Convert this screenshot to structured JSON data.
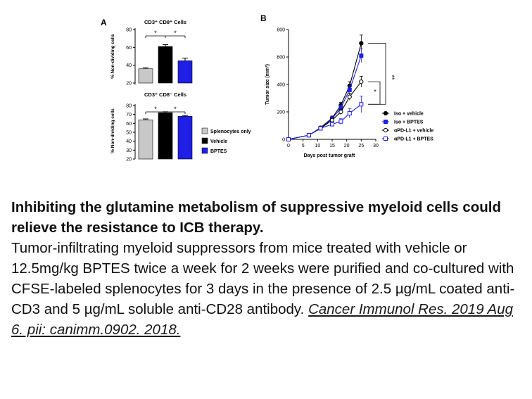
{
  "figure": {
    "panel_labels": [
      "A",
      "B"
    ]
  },
  "caption": {
    "title": "Inhibiting the glutamine metabolism of suppressive myeloid cells could relieve the resistance to ICB therapy.",
    "body": "Tumor-infiltrating myeloid suppressors from mice treated with vehicle or 12.5mg/kg BPTES twice a week for 2 weeks were purified and co-cultured with CFSE-labeled splenocytes for 3 days in the presence of 2.5 µg/mL coated anti-CD3 and 5 µg/mL soluble anti-CD28 antibody.",
    "citation": "Cancer Immunol Res. 2019 Aug 6. pii: canimm.0902. 2018."
  },
  "chart_data": [
    {
      "panel": "A",
      "type": "bar",
      "title": "CD3⁺ CD8⁺ Cells",
      "ylabel": "% Non-dividing cells",
      "ylim": [
        20,
        80
      ],
      "yticks": [
        20,
        40,
        60,
        80
      ],
      "categories": [
        "Splenocytes only",
        "Vehicle",
        "BPTES"
      ],
      "values": [
        36,
        61,
        45
      ],
      "errors": [
        1,
        2,
        3
      ],
      "colors": [
        "#c8c8c8",
        "#000000",
        "#1f1fe6"
      ],
      "significance": [
        {
          "from": 0,
          "to": 1,
          "label": "*"
        },
        {
          "from": 1,
          "to": 2,
          "label": "*"
        }
      ]
    },
    {
      "panel": "A",
      "type": "bar",
      "title": "CD3⁺ CD8⁻ Cells",
      "ylabel": "% Non-dividing cells",
      "ylim": [
        20,
        80
      ],
      "yticks": [
        20,
        30,
        40,
        50,
        60,
        70,
        80
      ],
      "categories": [
        "Splenocytes only",
        "Vehicle",
        "BPTES"
      ],
      "values": [
        64,
        72,
        68
      ],
      "errors": [
        1,
        1,
        1
      ],
      "colors": [
        "#c8c8c8",
        "#000000",
        "#1f1fe6"
      ],
      "significance": [
        {
          "from": 0,
          "to": 1,
          "label": "*"
        },
        {
          "from": 1,
          "to": 2,
          "label": "*"
        }
      ],
      "legend": [
        "Splenocytes only",
        "Vehicle",
        "BPTES"
      ]
    },
    {
      "panel": "B",
      "type": "line",
      "xlabel": "Days post tumor graft",
      "ylabel": "Tumor size (mm³)",
      "xlim": [
        0,
        30
      ],
      "ylim": [
        0,
        800
      ],
      "xticks": [
        0,
        5,
        10,
        15,
        20,
        25,
        30
      ],
      "yticks": [
        0,
        200,
        400,
        600,
        800
      ],
      "x": [
        0,
        7,
        11,
        15,
        18,
        21,
        25
      ],
      "series": [
        {
          "name": "Iso + vehicle",
          "values": [
            0,
            30,
            85,
            155,
            250,
            390,
            700
          ],
          "errors": [
            0,
            5,
            10,
            15,
            20,
            30,
            60
          ],
          "color": "#000000",
          "marker": "filled-circle"
        },
        {
          "name": "Iso + BPTES",
          "values": [
            0,
            30,
            80,
            150,
            230,
            360,
            610
          ],
          "errors": [
            0,
            5,
            10,
            15,
            20,
            30,
            50
          ],
          "color": "#1f1fe6",
          "marker": "filled-square"
        },
        {
          "name": "αPD-L1 + vehicle",
          "values": [
            0,
            30,
            80,
            140,
            200,
            310,
            420
          ],
          "errors": [
            0,
            5,
            10,
            15,
            20,
            25,
            40
          ],
          "color": "#000000",
          "marker": "open-circle"
        },
        {
          "name": "αPD-L1 + BPTES",
          "values": [
            0,
            30,
            80,
            110,
            130,
            190,
            255
          ],
          "errors": [
            0,
            5,
            10,
            15,
            20,
            35,
            60
          ],
          "color": "#1f1fe6",
          "marker": "open-square"
        }
      ],
      "significance": [
        "**",
        "*"
      ]
    }
  ]
}
